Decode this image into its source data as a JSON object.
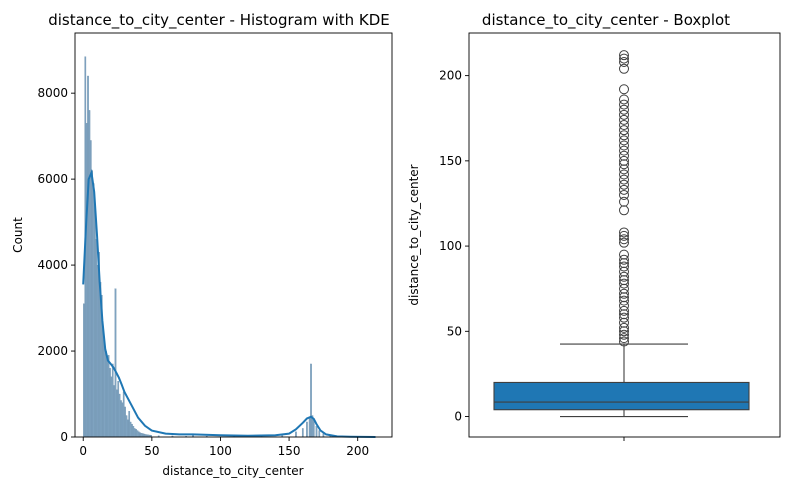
{
  "chart_data": [
    {
      "type": "bar",
      "title": "distance_to_city_center - Histogram with KDE",
      "xlabel": "distance_to_city_center",
      "ylabel": "Count",
      "xlim": [
        -6,
        225
      ],
      "ylim": [
        0,
        9400
      ],
      "xticks": [
        0,
        50,
        100,
        150,
        200
      ],
      "yticks": [
        0,
        2000,
        4000,
        6000,
        8000
      ],
      "bar_color": "#7fa3c0",
      "kde_color": "#1f77b4",
      "bins": {
        "x": [
          0.5,
          1.5,
          2.5,
          3.5,
          4.5,
          5.5,
          6.5,
          7.5,
          8.5,
          9.5,
          10.5,
          11.5,
          12.5,
          13.5,
          14.5,
          15.5,
          16.5,
          17.5,
          18.5,
          19.5,
          20.5,
          21.5,
          22.5,
          23.5,
          24.5,
          25.5,
          26.5,
          27.5,
          28.5,
          29.5,
          30.5,
          31.5,
          32.5,
          33.5,
          34.5,
          35.5,
          36.5,
          37.5,
          38.5,
          39.5,
          40.5,
          41.5,
          42.5,
          43.5,
          44.5,
          45.5,
          46.5,
          47.5,
          48.5,
          49.5,
          55,
          65,
          75,
          80,
          90,
          110,
          130,
          145,
          155,
          160,
          163,
          165,
          166,
          167,
          168,
          170,
          172,
          175,
          180,
          190,
          200
        ],
        "counts": [
          3100,
          8850,
          7300,
          8400,
          7600,
          6900,
          6200,
          5900,
          5400,
          4600,
          4000,
          4300,
          3600,
          3300,
          2500,
          2200,
          2000,
          1800,
          1900,
          1600,
          1400,
          1700,
          1200,
          3450,
          1100,
          1300,
          1000,
          850,
          800,
          1050,
          700,
          500,
          400,
          600,
          350,
          300,
          250,
          200,
          180,
          150,
          120,
          100,
          90,
          80,
          70,
          60,
          55,
          50,
          45,
          40,
          30,
          25,
          20,
          60,
          20,
          15,
          15,
          30,
          120,
          200,
          350,
          450,
          1700,
          500,
          400,
          250,
          150,
          80,
          40,
          20,
          10
        ]
      },
      "kde": {
        "x": [
          0,
          2,
          4,
          6,
          8,
          10,
          12,
          14,
          16,
          18,
          20,
          22,
          24,
          26,
          28,
          30,
          35,
          40,
          45,
          50,
          60,
          70,
          80,
          100,
          120,
          140,
          150,
          155,
          160,
          163,
          166,
          168,
          170,
          173,
          177,
          185,
          195,
          213
        ],
        "y": [
          3550,
          4900,
          6000,
          6150,
          5700,
          4700,
          3600,
          2700,
          2050,
          1780,
          1700,
          1620,
          1500,
          1380,
          1220,
          1050,
          750,
          450,
          260,
          150,
          80,
          60,
          60,
          40,
          30,
          40,
          80,
          180,
          330,
          430,
          470,
          420,
          300,
          150,
          60,
          15,
          5,
          0
        ]
      }
    },
    {
      "type": "box",
      "title": "distance_to_city_center - Boxplot",
      "ylabel": "distance_to_city_center",
      "ylim": [
        -12,
        225
      ],
      "yticks": [
        0,
        50,
        100,
        150,
        200
      ],
      "box_color": "#1f77b4",
      "stats": {
        "min": 0,
        "q1": 4,
        "median": 8.5,
        "q3": 20,
        "whisker_high": 42.5
      },
      "outliers": [
        44,
        46,
        48,
        50,
        52,
        55,
        58,
        60,
        62,
        65,
        68,
        70,
        72,
        75,
        78,
        80,
        82,
        85,
        88,
        90,
        92,
        95,
        102,
        104,
        106,
        108,
        121,
        126,
        130,
        133,
        136,
        139,
        142,
        145,
        148,
        150,
        153,
        156,
        159,
        162,
        165,
        168,
        171,
        174,
        177,
        180,
        183,
        186,
        192,
        204,
        208,
        210,
        212
      ]
    }
  ]
}
